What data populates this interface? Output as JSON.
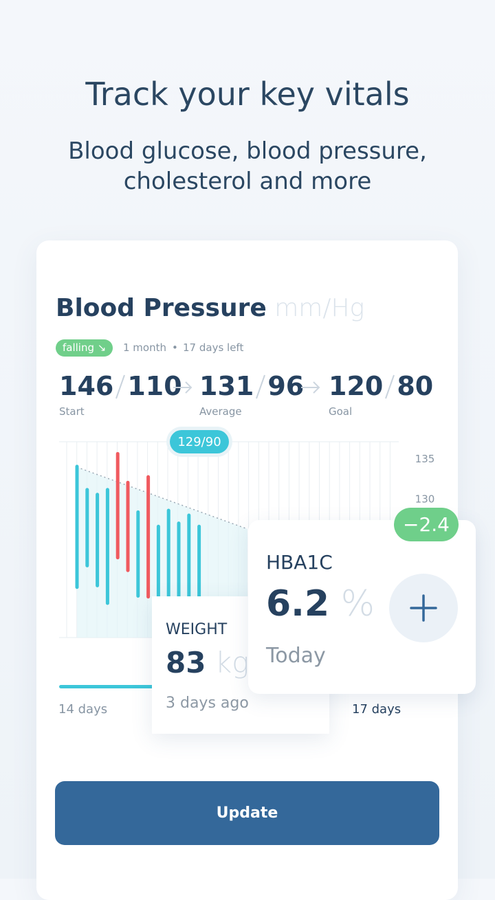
{
  "header": {
    "title": "Track your key vitals",
    "subtitle": [
      "Blood glucose, blood pressure,",
      "cholesterol and more"
    ]
  },
  "blood_pressure": {
    "title": "Blood Pressure",
    "unit": "mm/Hg",
    "trend": "falling ↘",
    "period": "1 month",
    "dot": "•",
    "remaining": "17 days left",
    "stats": [
      {
        "systolic": 146,
        "diastolic": 110,
        "label": "Start"
      },
      {
        "systolic": 131,
        "diastolic": 96,
        "label": "Average"
      },
      {
        "systolic": 120,
        "diastolic": 80,
        "label": "Goal"
      }
    ]
  },
  "chart_data": {
    "type": "range-bar",
    "tooltip": "129/90",
    "ylim": [
      112.7,
      137.2
    ],
    "yticks": [
      135,
      130
    ],
    "bars": [
      {
        "low": 119.0,
        "high": 134.1,
        "color": "#3cc6d9"
      },
      {
        "low": 121.7,
        "high": 131.2,
        "color": "#3cc6d9"
      },
      {
        "low": 119.2,
        "high": 130.6,
        "color": "#3cc6d9"
      },
      {
        "low": 117.0,
        "high": 131.2,
        "color": "#3cc6d9"
      },
      {
        "low": 122.7,
        "high": 135.7,
        "color": "#f05a5f"
      },
      {
        "low": 121.1,
        "high": 132.1,
        "color": "#f05a5f"
      },
      {
        "low": 117.9,
        "high": 128.4,
        "color": "#3cc6d9"
      },
      {
        "low": 117.8,
        "high": 132.8,
        "color": "#f05a5f"
      },
      {
        "low": 117.7,
        "high": 126.6,
        "color": "#3cc6d9"
      },
      {
        "low": 117.8,
        "high": 128.6,
        "color": "#3cc6d9"
      },
      {
        "low": 117.8,
        "high": 127.0,
        "color": "#3cc6d9"
      },
      {
        "low": 117.8,
        "high": 128.0,
        "color": "#3cc6d9"
      },
      {
        "low": 117.8,
        "high": 126.6,
        "color": "#3cc6d9"
      }
    ],
    "x_start_label": "14 days",
    "x_end_label": "17 days"
  },
  "weight": {
    "label": "WEIGHT",
    "value": 83,
    "unit": "kg",
    "when": "3 days ago"
  },
  "hba1c": {
    "label": "HBA1C",
    "value": 6.2,
    "unit": "%",
    "when": "Today",
    "change": "−2.4"
  },
  "button": "Update"
}
